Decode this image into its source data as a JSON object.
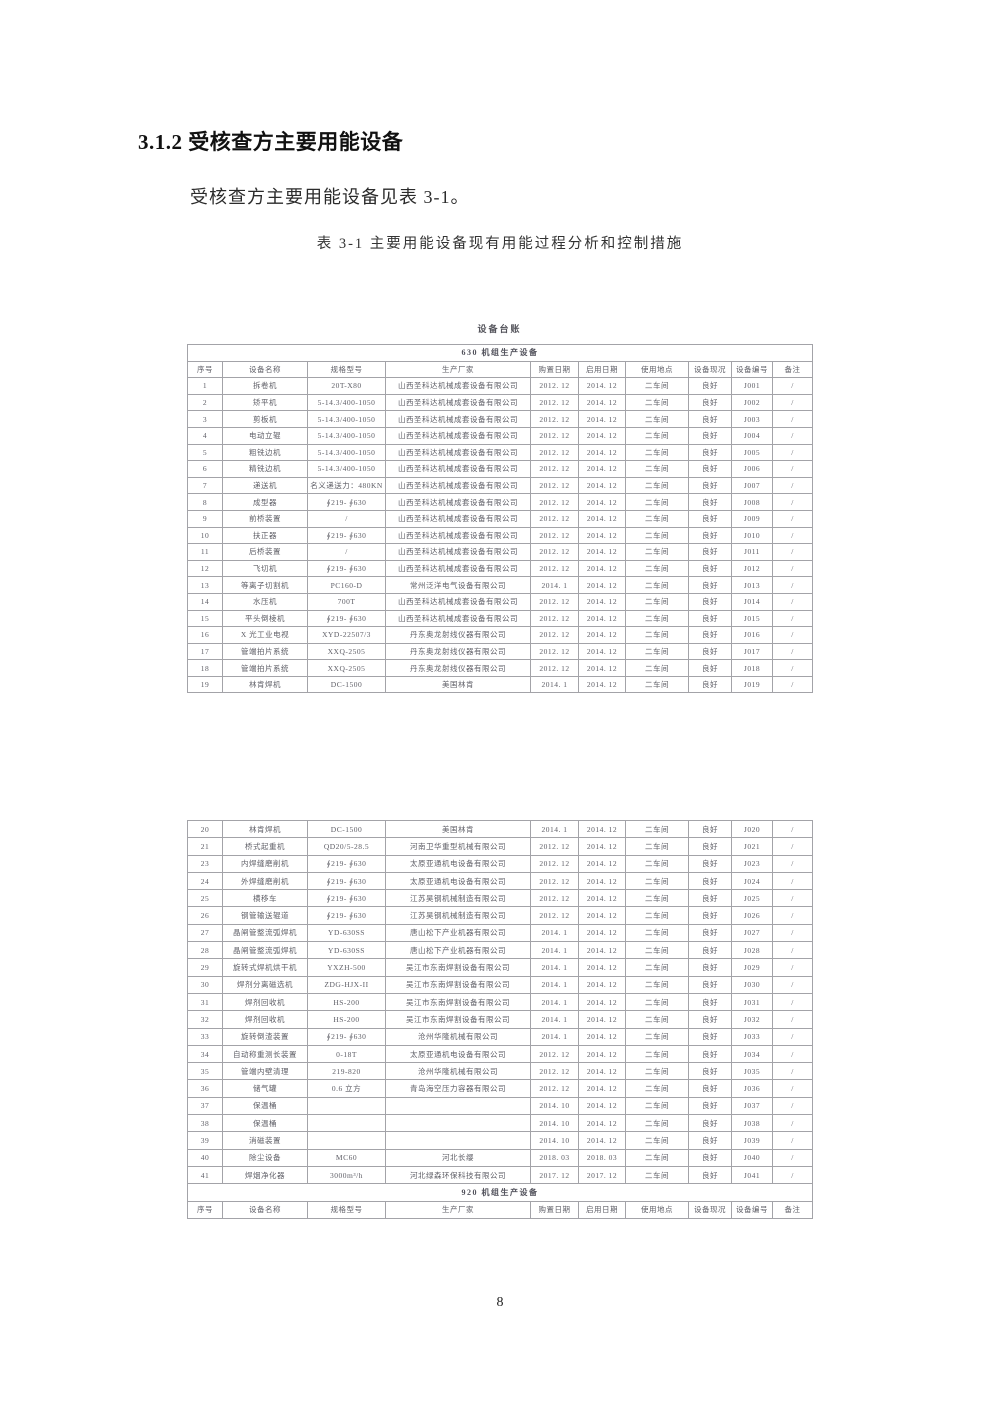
{
  "page": {
    "heading": "3.1.2 受核查方主要用能设备",
    "intro": "受核查方主要用能设备见表 3-1。",
    "table_caption": "表 3-1  主要用能设备现有用能过程分析和控制措施",
    "page_number": "8"
  },
  "table": {
    "ledger_title": "设备台账",
    "section1_title": "630 机组生产设备",
    "section2_title": "920 机组生产设备",
    "columns": [
      "序号",
      "设备名称",
      "规格型号",
      "生产厂家",
      "购置日期",
      "启用日期",
      "使用地点",
      "设备现况",
      "设备编号",
      "备注"
    ],
    "rows1": [
      [
        "1",
        "拆卷机",
        "20T-X80",
        "山西圣科达机械成套设备有限公司",
        "2012. 12",
        "2014. 12",
        "二车间",
        "良好",
        "J001",
        "/"
      ],
      [
        "2",
        "矫平机",
        "5-14.3/400-1050",
        "山西圣科达机械成套设备有限公司",
        "2012. 12",
        "2014. 12",
        "二车间",
        "良好",
        "J002",
        "/"
      ],
      [
        "3",
        "剪板机",
        "5-14.3/400-1050",
        "山西圣科达机械成套设备有限公司",
        "2012. 12",
        "2014. 12",
        "二车间",
        "良好",
        "J003",
        "/"
      ],
      [
        "4",
        "电动立辊",
        "5-14.3/400-1050",
        "山西圣科达机械成套设备有限公司",
        "2012. 12",
        "2014. 12",
        "二车间",
        "良好",
        "J004",
        "/"
      ],
      [
        "5",
        "粗铣边机",
        "5-14.3/400-1050",
        "山西圣科达机械成套设备有限公司",
        "2012. 12",
        "2014. 12",
        "二车间",
        "良好",
        "J005",
        "/"
      ],
      [
        "6",
        "精铣边机",
        "5-14.3/400-1050",
        "山西圣科达机械成套设备有限公司",
        "2012. 12",
        "2014. 12",
        "二车间",
        "良好",
        "J006",
        "/"
      ],
      [
        "7",
        "递送机",
        "名义递送力：480KN",
        "山西圣科达机械成套设备有限公司",
        "2012. 12",
        "2014. 12",
        "二车间",
        "良好",
        "J007",
        "/"
      ],
      [
        "8",
        "成型器",
        "∮219- ∮630",
        "山西圣科达机械成套设备有限公司",
        "2012. 12",
        "2014. 12",
        "二车间",
        "良好",
        "J008",
        "/"
      ],
      [
        "9",
        "前桥装置",
        "/",
        "山西圣科达机械成套设备有限公司",
        "2012. 12",
        "2014. 12",
        "二车间",
        "良好",
        "J009",
        "/"
      ],
      [
        "10",
        "扶正器",
        "∮219- ∮630",
        "山西圣科达机械成套设备有限公司",
        "2012. 12",
        "2014. 12",
        "二车间",
        "良好",
        "J010",
        "/"
      ],
      [
        "11",
        "后桥装置",
        "/",
        "山西圣科达机械成套设备有限公司",
        "2012. 12",
        "2014. 12",
        "二车间",
        "良好",
        "J011",
        "/"
      ],
      [
        "12",
        "飞切机",
        "∮219- ∮630",
        "山西圣科达机械成套设备有限公司",
        "2012. 12",
        "2014. 12",
        "二车间",
        "良好",
        "J012",
        "/"
      ],
      [
        "13",
        "等离子切割机",
        "PC160-D",
        "常州泛洋电气设备有限公司",
        "2014. 1",
        "2014. 12",
        "二车间",
        "良好",
        "J013",
        "/"
      ],
      [
        "14",
        "水压机",
        "700T",
        "山西圣科达机械成套设备有限公司",
        "2012. 12",
        "2014. 12",
        "二车间",
        "良好",
        "J014",
        "/"
      ],
      [
        "15",
        "平头倒棱机",
        "∮219- ∮630",
        "山西圣科达机械成套设备有限公司",
        "2012. 12",
        "2014. 12",
        "二车间",
        "良好",
        "J015",
        "/"
      ],
      [
        "16",
        "X 光工业电视",
        "XYD-22507/3",
        "丹东奥龙射线仪器有限公司",
        "2012. 12",
        "2014. 12",
        "二车间",
        "良好",
        "J016",
        "/"
      ],
      [
        "17",
        "管端拍片系统",
        "XXQ-2505",
        "丹东奥龙射线仪器有限公司",
        "2012. 12",
        "2014. 12",
        "二车间",
        "良好",
        "J017",
        "/"
      ],
      [
        "18",
        "管端拍片系统",
        "XXQ-2505",
        "丹东奥龙射线仪器有限公司",
        "2012. 12",
        "2014. 12",
        "二车间",
        "良好",
        "J018",
        "/"
      ],
      [
        "19",
        "林肯焊机",
        "DC-1500",
        "美国林肯",
        "2014. 1",
        "2014. 12",
        "二车间",
        "良好",
        "J019",
        "/"
      ]
    ],
    "rows2": [
      [
        "20",
        "林肯焊机",
        "DC-1500",
        "美国林肯",
        "2014. 1",
        "2014. 12",
        "二车间",
        "良好",
        "J020",
        "/"
      ],
      [
        "21",
        "桥式起重机",
        "QD20/5-28.5",
        "河南卫华重型机械有限公司",
        "2012. 12",
        "2014. 12",
        "二车间",
        "良好",
        "J021",
        "/"
      ],
      [
        "23",
        "内焊缝磨削机",
        "∮219- ∮630",
        "太原亚通机电设备有限公司",
        "2012. 12",
        "2014. 12",
        "二车间",
        "良好",
        "J023",
        "/"
      ],
      [
        "24",
        "外焊缝磨削机",
        "∮219- ∮630",
        "太原亚通机电设备有限公司",
        "2012. 12",
        "2014. 12",
        "二车间",
        "良好",
        "J024",
        "/"
      ],
      [
        "25",
        "横移车",
        "∮219- ∮630",
        "江苏昊钢机械制造有限公司",
        "2012. 12",
        "2014. 12",
        "二车间",
        "良好",
        "J025",
        "/"
      ],
      [
        "26",
        "钢管输送辊道",
        "∮219- ∮630",
        "江苏昊钢机械制造有限公司",
        "2012. 12",
        "2014. 12",
        "二车间",
        "良好",
        "J026",
        "/"
      ],
      [
        "27",
        "晶闸管整流弧焊机",
        "YD-630SS",
        "唐山松下产业机器有限公司",
        "2014. 1",
        "2014. 12",
        "二车间",
        "良好",
        "J027",
        "/"
      ],
      [
        "28",
        "晶闸管整流弧焊机",
        "YD-630SS",
        "唐山松下产业机器有限公司",
        "2014. 1",
        "2014. 12",
        "二车间",
        "良好",
        "J028",
        "/"
      ],
      [
        "29",
        "旋转式焊机烘干机",
        "YXZH-500",
        "吴江市东南焊割设备有限公司",
        "2014. 1",
        "2014. 12",
        "二车间",
        "良好",
        "J029",
        "/"
      ],
      [
        "30",
        "焊剂分离磁选机",
        "ZDG-HJX-II",
        "吴江市东南焊割设备有限公司",
        "2014. 1",
        "2014. 12",
        "二车间",
        "良好",
        "J030",
        "/"
      ],
      [
        "31",
        "焊剂回收机",
        "HS-200",
        "吴江市东南焊割设备有限公司",
        "2014. 1",
        "2014. 12",
        "二车间",
        "良好",
        "J031",
        "/"
      ],
      [
        "32",
        "焊剂回收机",
        "HS-200",
        "吴江市东南焊割设备有限公司",
        "2014. 1",
        "2014. 12",
        "二车间",
        "良好",
        "J032",
        "/"
      ],
      [
        "33",
        "旋转倒渣装置",
        "∮219- ∮630",
        "沧州华隆机械有限公司",
        "2014. 1",
        "2014. 12",
        "二车间",
        "良好",
        "J033",
        "/"
      ],
      [
        "34",
        "自动称重测长装置",
        "0-18T",
        "太原亚通机电设备有限公司",
        "2012. 12",
        "2014. 12",
        "二车间",
        "良好",
        "J034",
        "/"
      ],
      [
        "35",
        "管端内壁清理",
        "219-820",
        "沧州华隆机械有限公司",
        "2012. 12",
        "2014. 12",
        "二车间",
        "良好",
        "J035",
        "/"
      ],
      [
        "36",
        "储气罐",
        "0.6 立方",
        "青岛海空压力容器有限公司",
        "2012. 12",
        "2014. 12",
        "二车间",
        "良好",
        "J036",
        "/"
      ],
      [
        "37",
        "保温桶",
        "",
        "",
        "2014. 10",
        "2014. 12",
        "二车间",
        "良好",
        "J037",
        "/"
      ],
      [
        "38",
        "保温桶",
        "",
        "",
        "2014. 10",
        "2014. 12",
        "二车间",
        "良好",
        "J038",
        "/"
      ],
      [
        "39",
        "消磁装置",
        "",
        "",
        "2014. 10",
        "2014. 12",
        "二车间",
        "良好",
        "J039",
        "/"
      ],
      [
        "40",
        "除尘设备",
        "MC60",
        "河北长缨",
        "2018. 03",
        "2018. 03",
        "二车间",
        "良好",
        "J040",
        "/"
      ],
      [
        "41",
        "焊烟净化器",
        "3000m³/h",
        "河北绿森环保科技有限公司",
        "2017. 12",
        "2017. 12",
        "二车间",
        "良好",
        "J041",
        "/"
      ]
    ]
  }
}
